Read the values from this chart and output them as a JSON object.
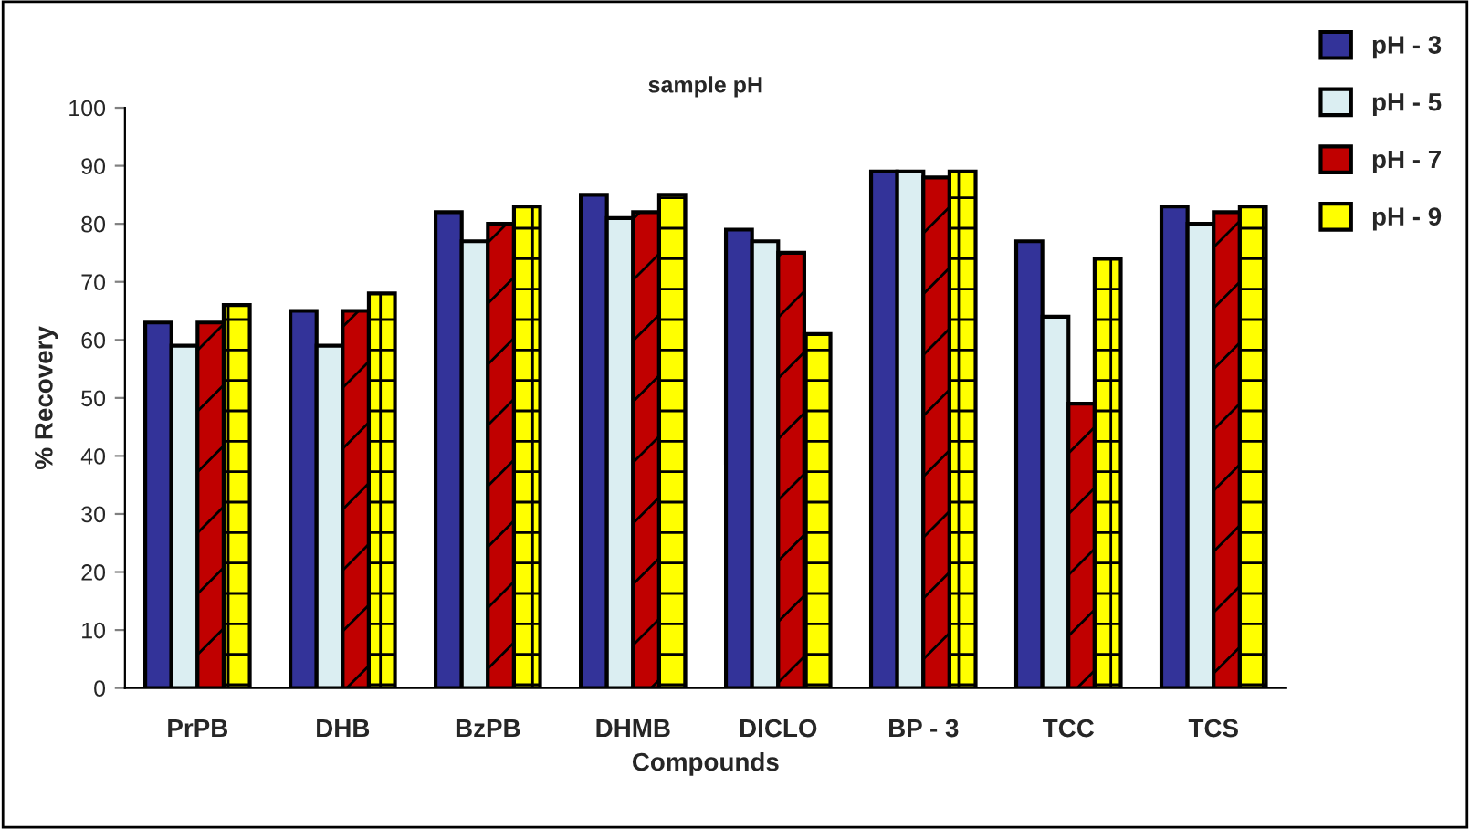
{
  "chart_data": {
    "type": "bar",
    "title": "sample pH",
    "xlabel": "Compounds",
    "ylabel": "% Recovery",
    "categories": [
      "PrPB",
      "DHB",
      "BzPB",
      "DHMB",
      "DICLO",
      "BP - 3",
      "TCC",
      "TCS"
    ],
    "series": [
      {
        "name": "pH - 3",
        "color": "#333399",
        "values": [
          63,
          65,
          82,
          85,
          79,
          89,
          77,
          83
        ]
      },
      {
        "name": "pH - 5",
        "color": "#dbeef2",
        "values": [
          59,
          59,
          77,
          81,
          77,
          89,
          64,
          80
        ]
      },
      {
        "name": "pH - 7",
        "color": "#c00000",
        "values": [
          63,
          65,
          80,
          82,
          75,
          88,
          49,
          82
        ]
      },
      {
        "name": "pH - 9",
        "color": "#ffff00",
        "values": [
          66,
          68,
          83,
          85,
          61,
          89,
          74,
          83
        ]
      }
    ],
    "ylim": [
      0,
      100
    ],
    "yticks": [
      0,
      10,
      20,
      30,
      40,
      50,
      60,
      70,
      80,
      90,
      100
    ],
    "grid": false,
    "legend": "top right"
  }
}
